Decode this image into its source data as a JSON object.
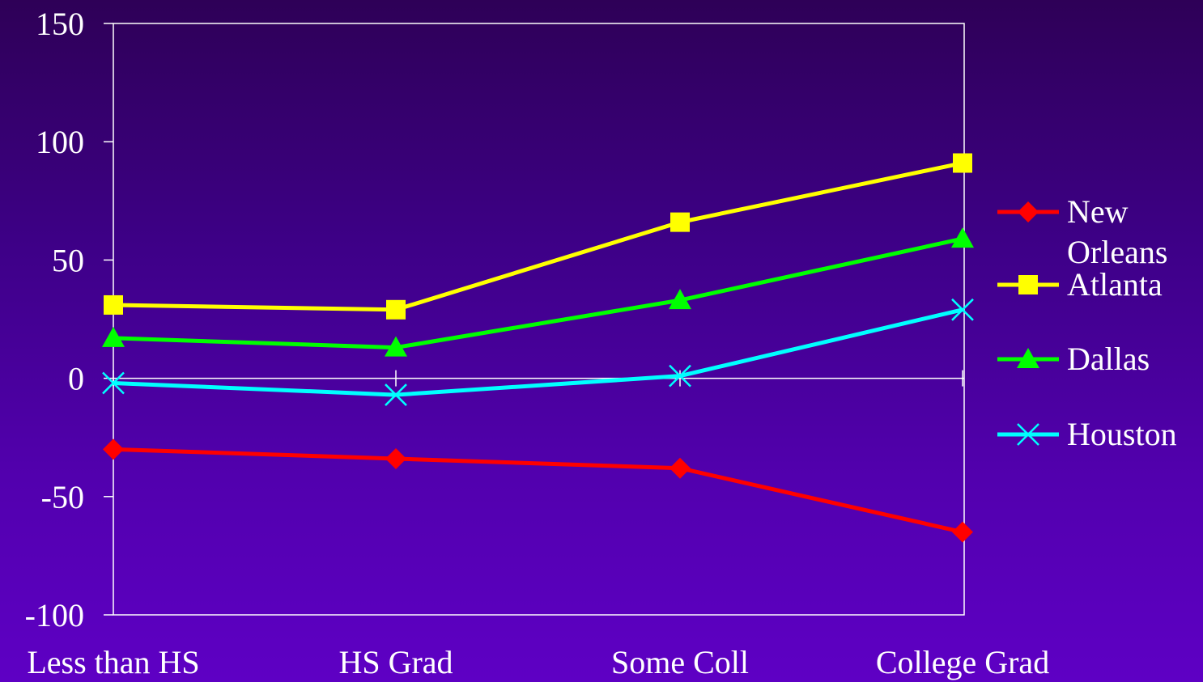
{
  "chart_data": {
    "type": "line",
    "categories": [
      "Less than HS",
      "HS Grad",
      "Some Coll",
      "College Grad"
    ],
    "ylim": [
      -100,
      150
    ],
    "yticks": [
      150,
      100,
      50,
      0,
      -50,
      -100
    ],
    "grid": false,
    "legend_position": "right",
    "series": [
      {
        "name": "New Orleans",
        "name_lines": [
          "New",
          "Orleans"
        ],
        "color": "#ff0000",
        "marker": "diamond",
        "values": [
          -30,
          -34,
          -38,
          -65
        ]
      },
      {
        "name": "Atlanta",
        "name_lines": [
          "Atlanta"
        ],
        "color": "#ffff00",
        "marker": "square",
        "values": [
          31,
          29,
          66,
          91
        ]
      },
      {
        "name": "Dallas",
        "name_lines": [
          "Dallas"
        ],
        "color": "#00ff00",
        "marker": "triangle",
        "values": [
          17,
          13,
          33,
          59
        ]
      },
      {
        "name": "Houston",
        "name_lines": [
          "Houston"
        ],
        "color": "#00ffff",
        "marker": "x",
        "values": [
          -2,
          -7,
          1,
          29
        ]
      }
    ]
  }
}
